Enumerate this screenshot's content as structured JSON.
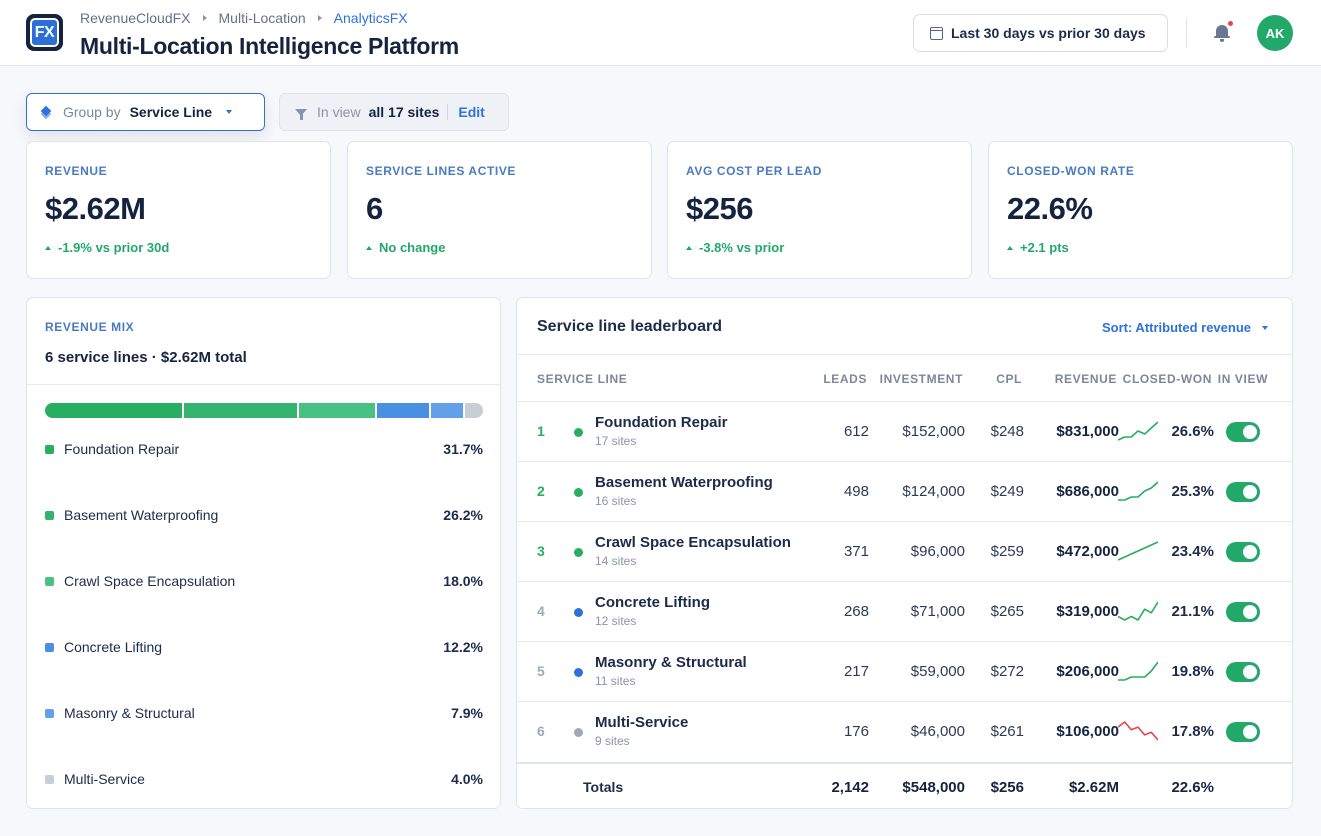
{
  "header": {
    "logo_text": "FX",
    "breadcrumb": [
      "RevenueCloudFX",
      "Multi-Location",
      "AnalyticsFX"
    ],
    "title": "Multi-Location Intelligence Platform",
    "date_range": "Last 30 days vs prior 30 days",
    "avatar_initials": "AK"
  },
  "toolbar": {
    "group_by_label": "Group by",
    "group_by_value": "Service Line",
    "in_view_label": "In view",
    "in_view_value": "all 17 sites",
    "edit_label": "Edit"
  },
  "kpis": [
    {
      "label": "REVENUE",
      "value": "$2.62M",
      "delta": "-1.9% vs prior 30d"
    },
    {
      "label": "SERVICE LINES ACTIVE",
      "value": "6",
      "delta": "No change"
    },
    {
      "label": "AVG COST PER LEAD",
      "value": "$256",
      "delta": "-3.8% vs prior"
    },
    {
      "label": "CLOSED-WON RATE",
      "value": "22.6%",
      "delta": "+2.1 pts"
    }
  ],
  "mix": {
    "label": "REVENUE MIX",
    "subtitle": "6 service lines · $2.62M total",
    "items": [
      {
        "name": "Foundation Repair",
        "pct_label": "31.7%",
        "pct": 31.7,
        "color": "#27ae60"
      },
      {
        "name": "Basement Waterproofing",
        "pct_label": "26.2%",
        "pct": 26.2,
        "color": "#34b36e"
      },
      {
        "name": "Crawl Space Encapsulation",
        "pct_label": "18.0%",
        "pct": 18.0,
        "color": "#48c283"
      },
      {
        "name": "Concrete Lifting",
        "pct_label": "12.2%",
        "pct": 12.2,
        "color": "#4a90e2"
      },
      {
        "name": "Masonry & Structural",
        "pct_label": "7.9%",
        "pct": 7.9,
        "color": "#62a1ea"
      },
      {
        "name": "Multi-Service",
        "pct_label": "4.0%",
        "pct": 4.0,
        "color": "#c9ced6"
      }
    ]
  },
  "board": {
    "title": "Service line leaderboard",
    "sort_label": "Sort: Attributed revenue",
    "columns": {
      "service_line": "SERVICE LINE",
      "leads": "LEADS",
      "investment": "INVESTMENT",
      "cpl": "CPL",
      "revenue": "REVENUE",
      "closed_won": "CLOSED-WON",
      "in_view": "IN VIEW"
    },
    "rows": [
      {
        "rank": "1",
        "name": "Foundation Repair",
        "sites": "17 sites",
        "leads": "612",
        "investment": "$152,000",
        "cpl": "$248",
        "revenue": "$831,000",
        "closed_won": "26.6%",
        "dot_color": "#27ae60",
        "rank_color": "#27ae60",
        "trend": [
          2,
          3,
          3,
          5,
          4,
          6,
          8
        ],
        "trend_color": "#27ae60"
      },
      {
        "rank": "2",
        "name": "Basement Waterproofing",
        "sites": "16 sites",
        "leads": "498",
        "investment": "$124,000",
        "cpl": "$249",
        "revenue": "$686,000",
        "closed_won": "25.3%",
        "dot_color": "#27ae60",
        "rank_color": "#27ae60",
        "trend": [
          2,
          2,
          3,
          3,
          5,
          6,
          8
        ],
        "trend_color": "#27ae60"
      },
      {
        "rank": "3",
        "name": "Crawl Space Encapsulation",
        "sites": "14 sites",
        "leads": "371",
        "investment": "$96,000",
        "cpl": "$259",
        "revenue": "$472,000",
        "closed_won": "23.4%",
        "dot_color": "#27ae60",
        "rank_color": "#27ae60",
        "trend": [
          1,
          2,
          3,
          4,
          5,
          6,
          7
        ],
        "trend_color": "#27ae60"
      },
      {
        "rank": "4",
        "name": "Concrete Lifting",
        "sites": "12 sites",
        "leads": "268",
        "investment": "$71,000",
        "cpl": "$265",
        "revenue": "$319,000",
        "closed_won": "21.1%",
        "dot_color": "#2d72d9",
        "rank_color": "#a0a8b8",
        "trend": [
          3,
          2,
          3,
          2,
          5,
          4,
          7
        ],
        "trend_color": "#27ae60"
      },
      {
        "rank": "5",
        "name": "Masonry & Structural",
        "sites": "11 sites",
        "leads": "217",
        "investment": "$59,000",
        "cpl": "$272",
        "revenue": "$206,000",
        "closed_won": "19.8%",
        "dot_color": "#2d72d9",
        "rank_color": "#a0a8b8",
        "trend": [
          2,
          2,
          3,
          3,
          3,
          5,
          8
        ],
        "trend_color": "#27ae60"
      },
      {
        "rank": "6",
        "name": "Multi-Service",
        "sites": "9 sites",
        "leads": "176",
        "investment": "$46,000",
        "cpl": "$261",
        "revenue": "$106,000",
        "closed_won": "17.8%",
        "dot_color": "#a0a8b8",
        "rank_color": "#a0a8b8",
        "trend": [
          6,
          8,
          5,
          6,
          3,
          4,
          1
        ],
        "trend_color": "#e5484d"
      }
    ],
    "totals": {
      "label": "Totals",
      "leads": "2,142",
      "investment": "$548,000",
      "cpl": "$256",
      "revenue": "$2.62M",
      "closed_won": "22.6%"
    }
  }
}
